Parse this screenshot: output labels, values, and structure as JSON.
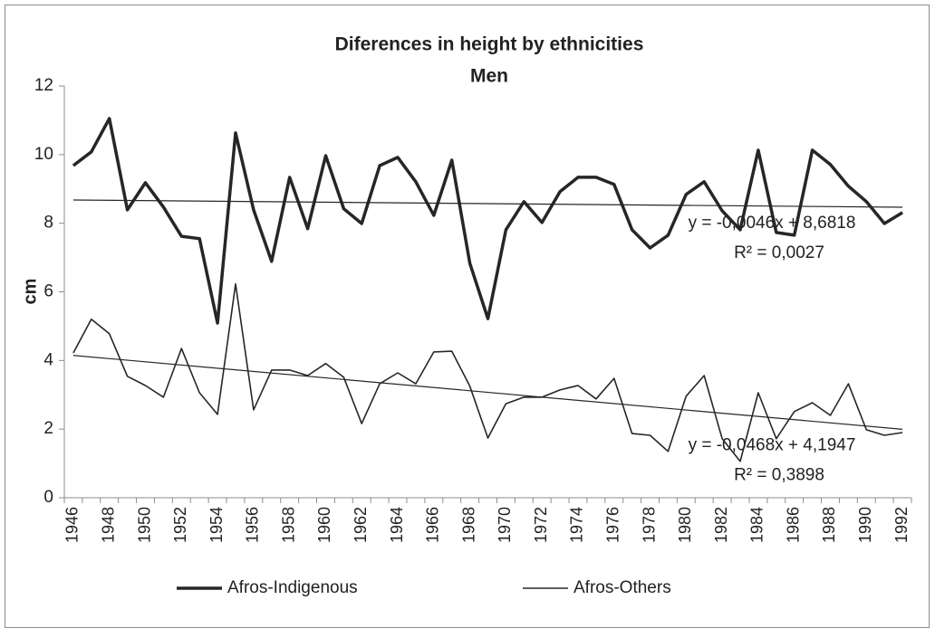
{
  "chart_data": {
    "type": "line",
    "title": "Diferences in height by ethnicities",
    "subtitle": "Men",
    "y_label": "cm",
    "categories": [
      "1946",
      null,
      "1948",
      null,
      "1950",
      null,
      "1952",
      null,
      "1954",
      null,
      "1956",
      null,
      "1958",
      null,
      "1960",
      null,
      "1962",
      null,
      "1964",
      null,
      "1966",
      null,
      "1968",
      null,
      "1970",
      null,
      "1972",
      null,
      "1974",
      null,
      "1976",
      null,
      "1978",
      null,
      "1980",
      null,
      "1982",
      null,
      "1984",
      null,
      "1986",
      null,
      "1988",
      null,
      "1990",
      null,
      "1992"
    ],
    "ylim": [
      0,
      12
    ],
    "yticks": [
      0,
      2,
      4,
      6,
      8,
      10,
      12
    ],
    "grid": false,
    "legend": "bottom",
    "series": [
      {
        "name": "Afros-Indigenous",
        "color": "#262626",
        "width": 3.5,
        "values": [
          9.68,
          10.08,
          11.05,
          8.39,
          9.18,
          8.47,
          7.62,
          7.55,
          5.09,
          10.63,
          8.39,
          6.89,
          9.34,
          7.84,
          9.97,
          8.42,
          7.99,
          9.68,
          9.92,
          9.21,
          8.23,
          9.84,
          6.83,
          5.22,
          7.81,
          8.63,
          8.02,
          8.92,
          9.34,
          9.34,
          9.13,
          7.81,
          7.28,
          7.65,
          8.84,
          9.21,
          8.36,
          7.81,
          10.13,
          7.73,
          7.65,
          10.13,
          9.71,
          9.08,
          8.63,
          7.99,
          8.31
        ]
      },
      {
        "name": "Afros-Others",
        "color": "#262626",
        "width": 1.6,
        "values": [
          4.22,
          5.2,
          4.78,
          3.54,
          3.27,
          2.93,
          4.35,
          3.06,
          2.43,
          6.23,
          2.56,
          3.72,
          3.72,
          3.56,
          3.91,
          3.51,
          2.16,
          3.32,
          3.64,
          3.32,
          4.25,
          4.27,
          3.25,
          1.74,
          2.74,
          2.93,
          2.93,
          3.14,
          3.27,
          2.88,
          3.48,
          1.87,
          1.82,
          1.35,
          2.96,
          3.56,
          1.72,
          1.06,
          3.06,
          1.72,
          2.51,
          2.77,
          2.4,
          3.32,
          1.98,
          1.82,
          1.9
        ]
      }
    ],
    "trendlines": [
      {
        "slope": -0.0046,
        "intercept": 8.6818,
        "equation": "y = -0,0046x + 8,6818",
        "r2": "R² = 0,0027"
      },
      {
        "slope": -0.0468,
        "intercept": 4.1947,
        "equation": "y = -0,0468x + 4,1947",
        "r2": "R² = 0,3898"
      }
    ]
  }
}
